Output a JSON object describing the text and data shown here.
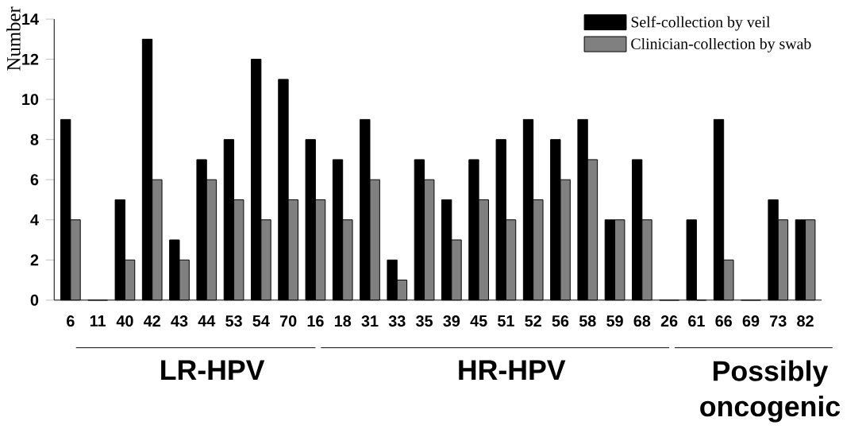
{
  "chart_data": {
    "type": "bar",
    "ylabel": "Number",
    "categories": [
      "6",
      "11",
      "40",
      "42",
      "43",
      "44",
      "53",
      "54",
      "70",
      "16",
      "18",
      "31",
      "33",
      "35",
      "39",
      "45",
      "51",
      "52",
      "56",
      "58",
      "59",
      "68",
      "26",
      "61",
      "66",
      "69",
      "73",
      "82"
    ],
    "series": [
      {
        "name": "Self-collection by veil",
        "color": "#000000",
        "values": [
          9,
          0,
          5,
          13,
          3,
          7,
          8,
          12,
          11,
          8,
          7,
          9,
          2,
          7,
          5,
          7,
          8,
          9,
          8,
          9,
          4,
          7,
          0,
          4,
          9,
          0,
          5,
          4
        ]
      },
      {
        "name": "Clinician-collection by swab",
        "color": "#808080",
        "values": [
          4,
          0,
          2,
          6,
          2,
          6,
          5,
          4,
          5,
          5,
          4,
          6,
          1,
          6,
          3,
          5,
          4,
          5,
          6,
          7,
          4,
          4,
          0,
          0,
          2,
          0,
          4,
          4
        ]
      }
    ],
    "ylim": [
      0,
      14
    ],
    "yticks": [
      0,
      2,
      4,
      6,
      8,
      10,
      12,
      14
    ],
    "grid": false,
    "legend": "top right",
    "annotations": [
      "LR-HPV",
      "HR-HPV",
      "Possibly oncogenic"
    ]
  }
}
